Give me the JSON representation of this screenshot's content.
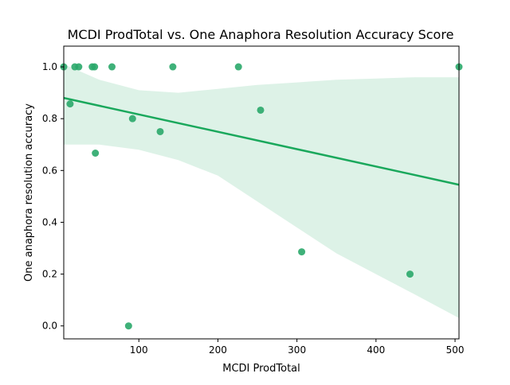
{
  "chart_data": {
    "type": "scatter",
    "title": "MCDI ProdTotal vs. One Anaphora Resolution Accuracy Score",
    "xlabel": "MCDI ProdTotal",
    "ylabel": "One anaphora resolution accuracy",
    "xlim": [
      5,
      505
    ],
    "ylim": [
      -0.05,
      1.08
    ],
    "x_ticks": [
      100,
      200,
      300,
      400,
      500
    ],
    "y_ticks": [
      0.0,
      0.2,
      0.4,
      0.6,
      0.8,
      1.0
    ],
    "x_tick_labels": [
      "100",
      "200",
      "300",
      "400",
      "500"
    ],
    "y_tick_labels": [
      "0.0",
      "0.2",
      "0.4",
      "0.6",
      "0.8",
      "1.0"
    ],
    "grid": false,
    "points": [
      {
        "x": 5,
        "y": 1.0
      },
      {
        "x": 13,
        "y": 0.857
      },
      {
        "x": 19,
        "y": 1.0
      },
      {
        "x": 24,
        "y": 1.0
      },
      {
        "x": 41,
        "y": 1.0
      },
      {
        "x": 44,
        "y": 1.0
      },
      {
        "x": 45,
        "y": 0.667
      },
      {
        "x": 66,
        "y": 1.0
      },
      {
        "x": 87,
        "y": 0.0
      },
      {
        "x": 92,
        "y": 0.8
      },
      {
        "x": 127,
        "y": 0.75
      },
      {
        "x": 143,
        "y": 1.0
      },
      {
        "x": 226,
        "y": 1.0
      },
      {
        "x": 254,
        "y": 0.833
      },
      {
        "x": 306,
        "y": 0.286
      },
      {
        "x": 443,
        "y": 0.2
      },
      {
        "x": 505,
        "y": 1.0
      }
    ],
    "regression_line": {
      "x": [
        5,
        505
      ],
      "y": [
        0.88,
        0.545
      ]
    },
    "confidence_band": {
      "x": [
        5,
        50,
        100,
        150,
        200,
        250,
        300,
        350,
        400,
        450,
        505
      ],
      "upper": [
        1.01,
        0.95,
        0.91,
        0.9,
        0.915,
        0.93,
        0.94,
        0.95,
        0.955,
        0.96,
        0.96
      ],
      "lower": [
        0.7,
        0.7,
        0.68,
        0.64,
        0.58,
        0.48,
        0.38,
        0.28,
        0.2,
        0.12,
        0.03
      ]
    },
    "colors": {
      "point": "#2aa86a",
      "line": "#1aa85c",
      "band": "#1aa85c"
    }
  }
}
